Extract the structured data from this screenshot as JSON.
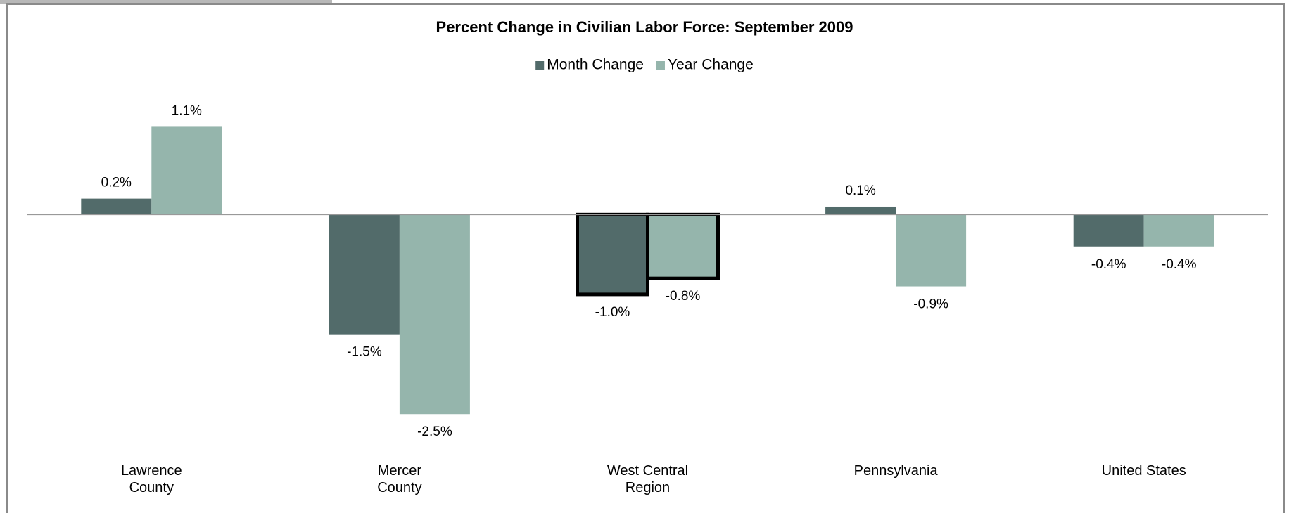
{
  "chart_data": {
    "type": "bar",
    "title": "Percent Change in Civilian Labor Force: September 2009",
    "categories": [
      "Lawrence County",
      "Mercer County",
      "West Central Region",
      "Pennsylvania",
      "United States"
    ],
    "series": [
      {
        "name": "Month Change",
        "color": "#526b6a",
        "values": [
          0.2,
          -1.5,
          -1.0,
          0.1,
          -0.4
        ],
        "value_labels": [
          "0.2%",
          "-1.5%",
          "-1.0%",
          "0.1%",
          "-0.4%"
        ]
      },
      {
        "name": "Year Change",
        "color": "#95b5ac",
        "values": [
          1.1,
          -2.5,
          -0.8,
          -0.9,
          -0.4
        ],
        "value_labels": [
          "1.1%",
          "-2.5%",
          "-0.8%",
          "-0.9%",
          "-0.4%"
        ]
      }
    ],
    "ylim": [
      -3,
      1.5
    ],
    "highlight": "West Central Region",
    "legend": "top"
  }
}
